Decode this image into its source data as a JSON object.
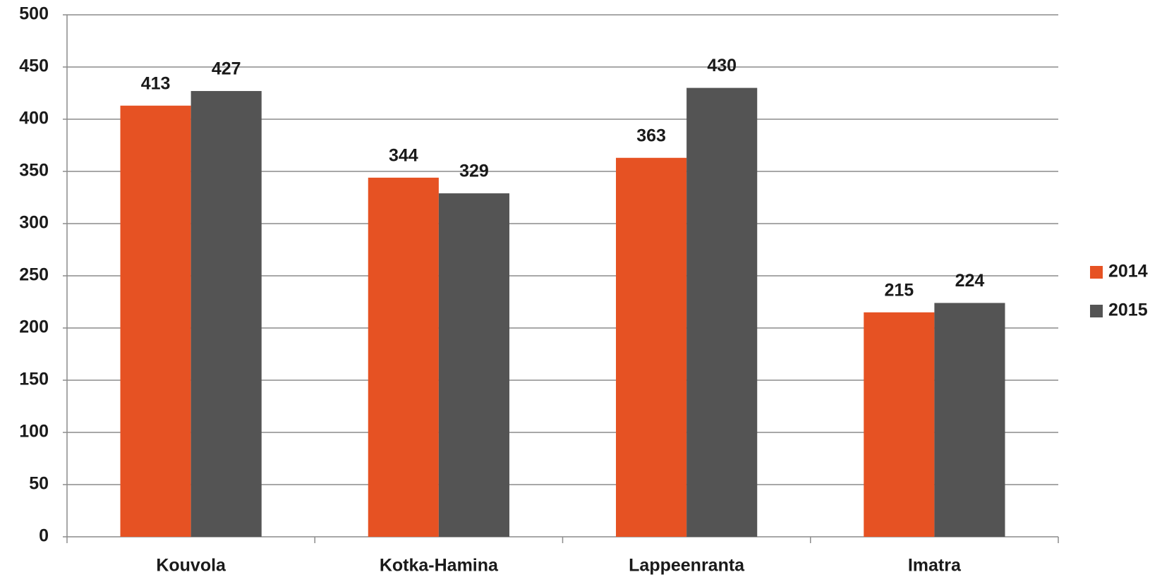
{
  "chart_data": {
    "type": "bar",
    "categories": [
      "Kouvola",
      "Kotka-Hamina",
      "Lappeenranta",
      "Imatra"
    ],
    "series": [
      {
        "name": "2014",
        "color": "#e65223",
        "values": [
          413,
          344,
          363,
          215
        ]
      },
      {
        "name": "2015",
        "color": "#545454",
        "values": [
          427,
          329,
          430,
          224
        ]
      }
    ],
    "ylim": [
      0,
      500
    ],
    "yticks": [
      0,
      50,
      100,
      150,
      200,
      250,
      300,
      350,
      400,
      450,
      500
    ],
    "grid": true,
    "legend": "right"
  }
}
